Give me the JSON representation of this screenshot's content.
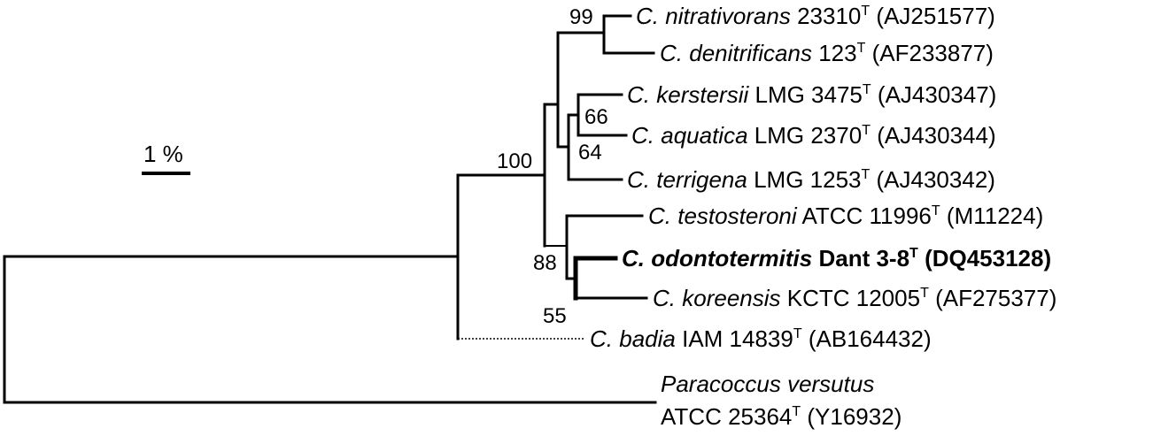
{
  "scale_bar": {
    "label": "1 %"
  },
  "bootstrap": {
    "n99": "99",
    "n100": "100",
    "n66": "66",
    "n64": "64",
    "n88": "88",
    "n55": "55"
  },
  "taxa": [
    {
      "genus": "C.",
      "species": "nitrativorans",
      "strain": "23310",
      "sup": "T",
      "accession": "(AJ251577)"
    },
    {
      "genus": "C.",
      "species": "denitrificans",
      "strain": "123",
      "sup": "T",
      "accession": "(AF233877)"
    },
    {
      "genus": "C.",
      "species": "kerstersii",
      "strain": "LMG 3475",
      "sup": "T",
      "accession": "(AJ430347)"
    },
    {
      "genus": "C.",
      "species": "aquatica",
      "strain": "LMG 2370",
      "sup": "T",
      "accession": "(AJ430344)"
    },
    {
      "genus": "C.",
      "species": "terrigena",
      "strain": "LMG 1253",
      "sup": "T",
      "accession": "(AJ430342)"
    },
    {
      "genus": "C.",
      "species": "testosteroni",
      "strain": "ATCC 11996",
      "sup": "T",
      "accession": "(M11224)"
    },
    {
      "genus": "C.",
      "species": "odontotermitis",
      "strain": "Dant 3-8",
      "sup": "T",
      "accession": "(DQ453128)"
    },
    {
      "genus": "C.",
      "species": "koreensis",
      "strain": "KCTC 12005",
      "sup": "T",
      "accession": "(AF275377)"
    },
    {
      "genus": "C.",
      "species": "badia",
      "strain": "IAM 14839",
      "sup": "T",
      "accession": "(AB164432)"
    }
  ],
  "outgroup": {
    "name": "Paracoccus versutus",
    "strain": "ATCC 25364",
    "sup": "T",
    "accession": "(Y16932)"
  }
}
